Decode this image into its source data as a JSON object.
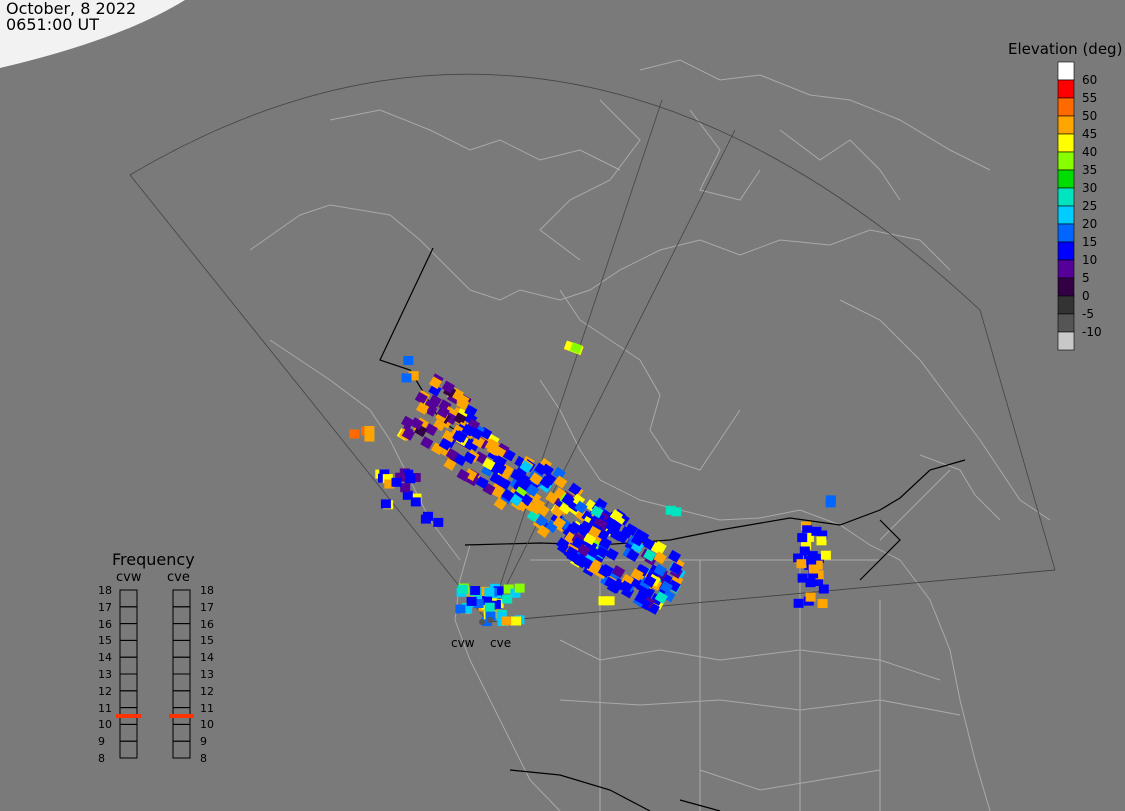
{
  "header": {
    "date": "October, 8 2022",
    "time": "0651:00 UT"
  },
  "legend": {
    "title": "Elevation (deg)",
    "ticks": [
      "60",
      "55",
      "50",
      "45",
      "40",
      "35",
      "30",
      "25",
      "20",
      "15",
      "10",
      "5",
      "0",
      "-5",
      "-10"
    ],
    "colors": [
      "#ffffff",
      "#ff0000",
      "#ff6a00",
      "#ffa500",
      "#ffff00",
      "#88ff00",
      "#00dd00",
      "#00e5c0",
      "#00ccff",
      "#0066ff",
      "#0000ff",
      "#550099",
      "#330044",
      "#333333",
      "#555555",
      "#c8c8c8"
    ]
  },
  "frequency": {
    "title": "Frequency",
    "sites": [
      "cvw",
      "cve"
    ],
    "scale": [
      "18",
      "17",
      "16",
      "15",
      "14",
      "13",
      "12",
      "11",
      "10",
      "9",
      "8"
    ],
    "marker_color": "#ff3300",
    "cvw_mhz": 10.5,
    "cve_mhz": 10.5
  },
  "sites": {
    "west_label": "cvw",
    "east_label": "cve"
  }
}
